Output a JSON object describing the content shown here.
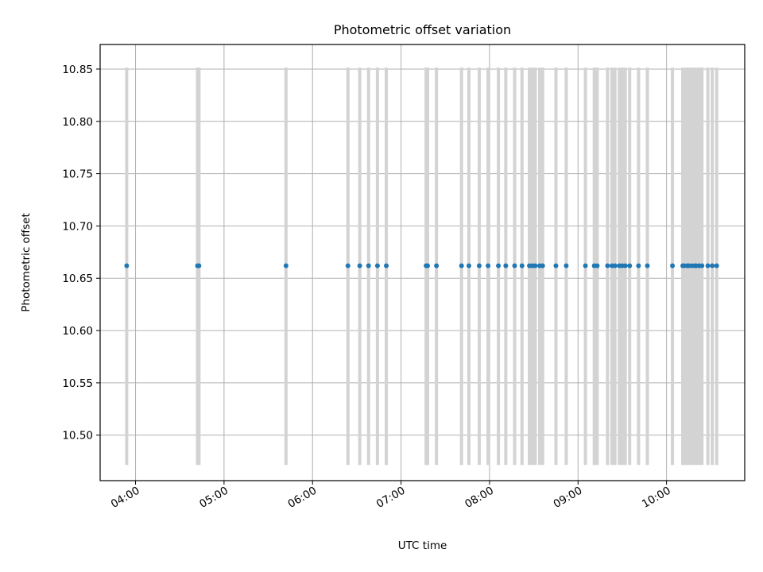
{
  "chart_data": {
    "type": "scatter",
    "title": "Photometric offset variation",
    "xlabel": "UTC time",
    "ylabel": "Photometric offset",
    "x_is_time": true,
    "xlim": [
      "03:36",
      "10:53"
    ],
    "ylim": [
      10.4565,
      10.8735
    ],
    "grid": true,
    "x_ticks": [
      {
        "value": "04:00",
        "label": "04:00"
      },
      {
        "value": "05:00",
        "label": "05:00"
      },
      {
        "value": "06:00",
        "label": "06:00"
      },
      {
        "value": "07:00",
        "label": "07:00"
      },
      {
        "value": "08:00",
        "label": "08:00"
      },
      {
        "value": "09:00",
        "label": "09:00"
      },
      {
        "value": "10:00",
        "label": "10:00"
      }
    ],
    "y_ticks": [
      10.5,
      10.55,
      10.6,
      10.65,
      10.7,
      10.75,
      10.8,
      10.85
    ],
    "y_tick_labels": [
      "10.50",
      "10.55",
      "10.60",
      "10.65",
      "10.70",
      "10.75",
      "10.80",
      "10.85"
    ],
    "errorbar": {
      "lower": 10.4715,
      "upper": 10.8515
    },
    "series": [
      {
        "values": [
          10.662,
          10.662,
          10.662,
          10.662,
          10.662,
          10.662,
          10.662,
          10.662,
          10.662,
          10.662,
          10.662,
          10.662,
          10.662,
          10.662,
          10.662,
          10.662,
          10.662,
          10.662,
          10.662,
          10.662,
          10.662,
          10.662,
          10.662,
          10.662,
          10.662,
          10.662,
          10.662,
          10.662,
          10.662,
          10.662,
          10.662,
          10.662,
          10.662,
          10.662,
          10.662,
          10.662,
          10.662,
          10.662,
          10.662,
          10.662,
          10.662,
          10.662,
          10.662,
          10.662,
          10.662,
          10.662,
          10.662,
          10.662,
          10.662,
          10.662,
          10.662,
          10.662
        ],
        "x": [
          "03:54",
          "04:42",
          "04:43",
          "05:42",
          "06:24",
          "06:32",
          "06:38",
          "06:44",
          "06:50",
          "07:17",
          "07:18",
          "07:24",
          "07:41",
          "07:46",
          "07:53",
          "07:59",
          "08:06",
          "08:11",
          "08:17",
          "08:22",
          "08:27",
          "08:29",
          "08:31",
          "08:34",
          "08:36",
          "08:45",
          "08:52",
          "09:05",
          "09:11",
          "09:13",
          "09:20",
          "09:23",
          "09:25",
          "09:28",
          "09:30",
          "09:32",
          "09:35",
          "09:41",
          "09:47",
          "10:04",
          "10:11",
          "10:12",
          "10:14",
          "10:15",
          "10:17",
          "10:19",
          "10:20",
          "10:22",
          "10:24",
          "10:28",
          "10:31",
          "10:34"
        ]
      }
    ],
    "colors": {
      "points": "#1f77b4",
      "errorbars": "#d3d3d3",
      "grid": "#b0b0b0"
    }
  }
}
